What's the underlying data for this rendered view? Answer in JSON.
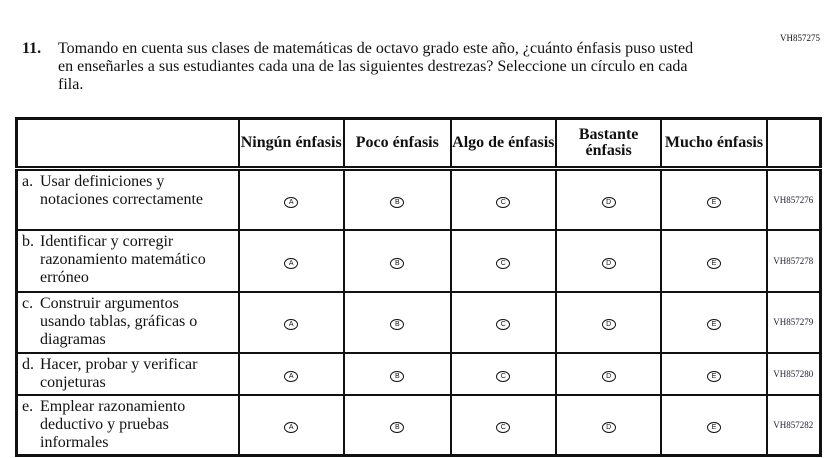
{
  "question": {
    "code": "VH857275",
    "number": "11.",
    "text": "Tomando en cuenta sus clases de matemáticas de octavo grado este año, ¿cuánto énfasis puso usted en enseñarles a sus estudiantes cada una de las siguientes destrezas? Seleccione un círculo en cada fila."
  },
  "columns": [
    "Ningún énfasis",
    "Poco énfasis",
    "Algo de énfasis",
    "Bastante énfasis",
    "Mucho énfasis"
  ],
  "bubbles": [
    "A",
    "B",
    "C",
    "D",
    "E"
  ],
  "rows": [
    {
      "letter": "a.",
      "text": "Usar definiciones y notaciones correctamente",
      "code": "VH857276"
    },
    {
      "letter": "b.",
      "text": "Identificar y corregir razonamiento matemático erróneo",
      "code": "VH857278"
    },
    {
      "letter": "c.",
      "text": "Construir argumentos usando tablas, gráficas o diagramas",
      "code": "VH857279"
    },
    {
      "letter": "d.",
      "text": "Hacer, probar y verificar conjeturas",
      "code": "VH857280"
    },
    {
      "letter": "e.",
      "text": "Emplear razonamiento deductivo y pruebas informales",
      "code": "VH857282"
    }
  ]
}
